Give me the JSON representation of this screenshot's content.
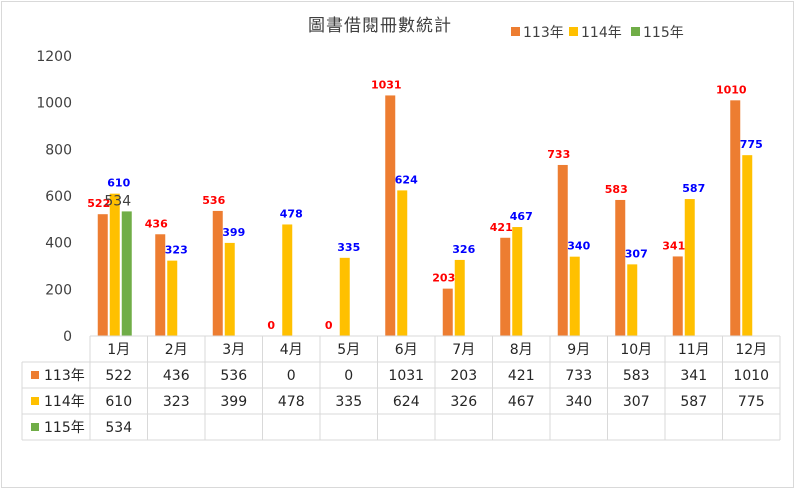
{
  "chart_data": {
    "type": "bar",
    "title": "圖書借閱冊數統計",
    "categories": [
      "1月",
      "2月",
      "3月",
      "4月",
      "5月",
      "6月",
      "7月",
      "8月",
      "9月",
      "10月",
      "11月",
      "12月"
    ],
    "series": [
      {
        "name": "113年",
        "color": "#ED7D31",
        "label_color": "#FF0000",
        "values": [
          522,
          436,
          536,
          0,
          0,
          1031,
          203,
          421,
          733,
          583,
          341,
          1010
        ]
      },
      {
        "name": "114年",
        "color": "#FFC000",
        "label_color": "#0000FF",
        "values": [
          610,
          323,
          399,
          478,
          335,
          624,
          326,
          467,
          340,
          307,
          587,
          775
        ]
      },
      {
        "name": "115年",
        "color": "#70AD47",
        "label_color": "#404040",
        "values": [
          534,
          null,
          null,
          null,
          null,
          null,
          null,
          null,
          null,
          null,
          null,
          null
        ]
      }
    ],
    "ylim": [
      0,
      1200
    ],
    "yticks": [
      0,
      200,
      400,
      600,
      800,
      1000,
      1200
    ],
    "legend": "top-right",
    "grid": false,
    "data_table": true
  }
}
